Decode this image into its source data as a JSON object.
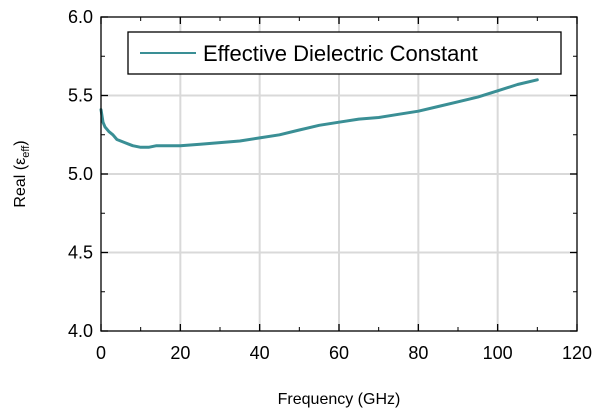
{
  "chart_data": {
    "type": "line",
    "xlabel": "Frequency (GHz)",
    "ylabel": {
      "main": "Real (",
      "symbol": "ε",
      "subscript": "eff",
      "close": ")"
    },
    "xlim": [
      0,
      120
    ],
    "ylim": [
      4.0,
      6.0
    ],
    "x_ticks": [
      "0",
      "20",
      "40",
      "60",
      "80",
      "100",
      "120"
    ],
    "y_ticks": [
      "4.0",
      "4.5",
      "5.0",
      "5.5",
      "6.0"
    ],
    "grid": true,
    "legend_position": "top-right",
    "series_color": "#3a8f95",
    "series": [
      {
        "name": "Effective Dielectric Constant",
        "x": [
          0,
          0.5,
          1,
          2,
          3,
          4,
          6,
          8,
          10,
          12,
          14,
          20,
          25,
          30,
          35,
          40,
          45,
          50,
          55,
          60,
          65,
          70,
          75,
          80,
          85,
          90,
          95,
          100,
          105,
          110
        ],
        "y": [
          5.41,
          5.33,
          5.3,
          5.27,
          5.25,
          5.22,
          5.2,
          5.18,
          5.17,
          5.17,
          5.18,
          5.18,
          5.19,
          5.2,
          5.21,
          5.23,
          5.25,
          5.28,
          5.31,
          5.33,
          5.35,
          5.36,
          5.38,
          5.4,
          5.43,
          5.46,
          5.49,
          5.53,
          5.57,
          5.6
        ]
      }
    ]
  }
}
